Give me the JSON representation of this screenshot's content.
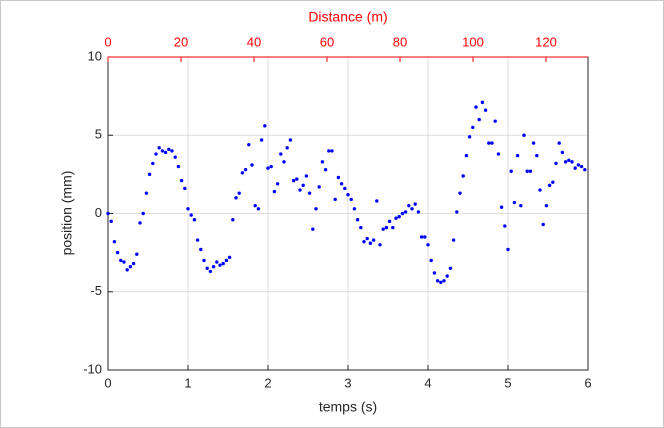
{
  "chart_data": {
    "type": "scatter",
    "xlabel": "temps (s)",
    "ylabel": "position (mm)",
    "x2label": "Distance (m)",
    "x2color": "#ff0000",
    "xlim": [
      0,
      6
    ],
    "xticks": [
      0,
      1,
      2,
      3,
      4,
      5,
      6
    ],
    "ylim": [
      -10,
      10
    ],
    "yticks": [
      -10,
      -5,
      0,
      5,
      10
    ],
    "x2lim": [
      0,
      131.5
    ],
    "x2ticks": [
      0,
      20,
      40,
      60,
      80,
      100,
      120
    ],
    "grid": true,
    "series": [
      {
        "color": "#0000ff",
        "x": [
          0,
          0.04,
          0.08,
          0.12,
          0.16,
          0.2,
          0.24,
          0.28,
          0.32,
          0.36,
          0.4,
          0.44,
          0.48,
          0.52,
          0.56,
          0.6,
          0.64,
          0.68,
          0.72,
          0.76,
          0.8,
          0.84,
          0.88,
          0.92,
          0.96,
          1,
          1.04,
          1.08,
          1.12,
          1.16,
          1.2,
          1.24,
          1.28,
          1.32,
          1.36,
          1.4,
          1.44,
          1.48,
          1.52,
          1.56,
          1.6,
          1.64,
          1.68,
          1.72,
          1.76,
          1.8,
          1.84,
          1.88,
          1.92,
          1.96,
          2,
          2.04,
          2.08,
          2.12,
          2.16,
          2.2,
          2.24,
          2.28,
          2.32,
          2.36,
          2.4,
          2.44,
          2.48,
          2.52,
          2.56,
          2.6,
          2.64,
          2.68,
          2.72,
          2.76,
          2.8,
          2.84,
          2.88,
          2.92,
          2.96,
          3,
          3.04,
          3.08,
          3.12,
          3.16,
          3.2,
          3.24,
          3.28,
          3.32,
          3.36,
          3.4,
          3.44,
          3.48,
          3.52,
          3.56,
          3.6,
          3.64,
          3.68,
          3.72,
          3.76,
          3.8,
          3.84,
          3.88,
          3.92,
          3.96,
          4,
          4.04,
          4.08,
          4.12,
          4.16,
          4.2,
          4.24,
          4.28,
          4.32,
          4.36,
          4.4,
          4.44,
          4.48,
          4.52,
          4.56,
          4.6,
          4.64,
          4.68,
          4.72,
          4.76,
          4.8,
          4.84,
          4.88,
          4.92,
          4.96,
          5,
          5.04,
          5.08,
          5.12,
          5.16,
          5.2,
          5.24,
          5.28,
          5.32,
          5.36,
          5.4,
          5.44,
          5.48,
          5.52,
          5.56,
          5.6,
          5.64,
          5.68,
          5.72,
          5.76,
          5.8,
          5.84,
          5.88,
          5.92,
          5.96
        ],
        "values": [
          0,
          -0.5,
          -1.8,
          -2.5,
          -3.0,
          -3.1,
          -3.6,
          -3.4,
          -3.2,
          -2.6,
          -0.6,
          0.0,
          1.3,
          2.5,
          3.2,
          3.8,
          4.2,
          4.0,
          3.9,
          4.1,
          4.0,
          3.6,
          3.0,
          2.1,
          1.6,
          0.3,
          -0.1,
          -0.4,
          -1.7,
          -2.3,
          -3.0,
          -3.5,
          -3.7,
          -3.4,
          -3.1,
          -3.3,
          -3.2,
          -3.0,
          -2.8,
          -0.4,
          1.0,
          1.3,
          2.6,
          2.8,
          4.4,
          3.1,
          0.5,
          0.3,
          4.7,
          5.6,
          2.9,
          3.0,
          1.4,
          1.9,
          3.8,
          3.3,
          4.2,
          4.7,
          2.1,
          2.2,
          1.5,
          1.8,
          2.4,
          1.3,
          -1.0,
          0.3,
          1.7,
          3.3,
          2.8,
          4.0,
          4.0,
          0.9,
          2.3,
          1.9,
          1.6,
          1.2,
          0.9,
          0.3,
          -0.4,
          -0.9,
          -1.8,
          -1.6,
          -1.9,
          -1.7,
          0.8,
          -2.0,
          -1.0,
          -0.9,
          -0.5,
          -0.9,
          -0.3,
          -0.2,
          0.0,
          0.1,
          0.5,
          0.3,
          0.6,
          0.1,
          -1.5,
          -1.5,
          -2.0,
          -3.0,
          -3.8,
          -4.3,
          -4.4,
          -4.3,
          -4.0,
          -3.5,
          -1.7,
          0.1,
          1.3,
          2.4,
          3.7,
          4.9,
          5.5,
          6.8,
          6.0,
          7.1,
          6.6,
          4.5,
          4.5,
          5.9,
          3.8,
          0.4,
          -0.8,
          -2.3,
          2.7,
          0.7,
          3.7,
          0.5,
          5.0,
          2.7,
          2.7,
          4.5,
          3.7,
          1.5,
          -0.7,
          0.5,
          1.8,
          2.0,
          3.2,
          4.5,
          3.9,
          3.3,
          3.4,
          3.3,
          2.9,
          3.1,
          3.0,
          2.8
        ]
      }
    ]
  }
}
